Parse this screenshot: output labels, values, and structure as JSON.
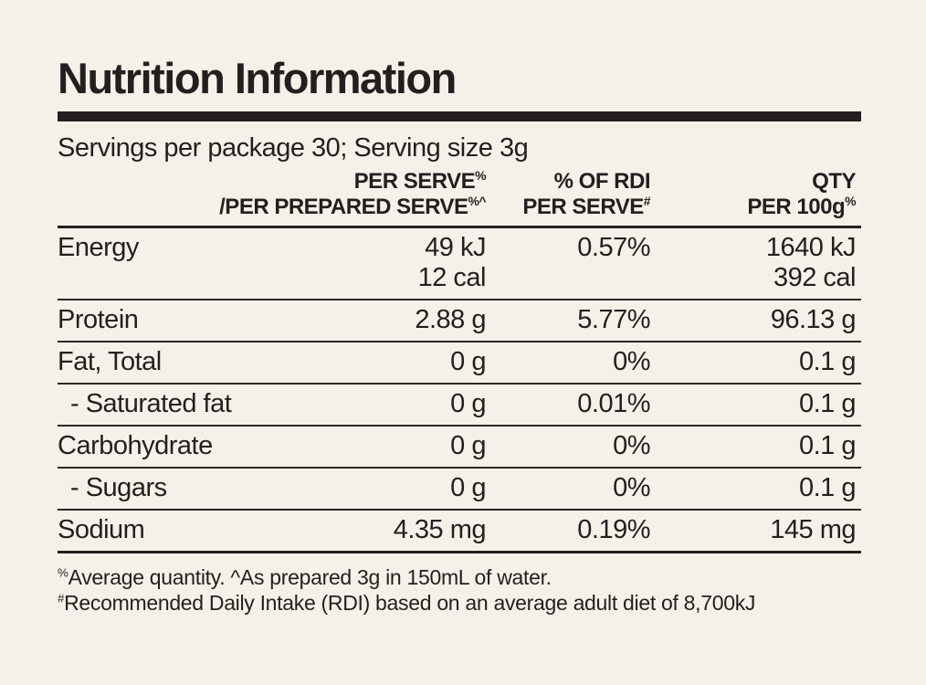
{
  "title": "Nutrition Information",
  "servings_line": "Servings per package 30; Serving size 3g",
  "table": {
    "headers": {
      "serve": {
        "line1": "PER SERVE",
        "line1_sup": "%",
        "line2": "/PER PREPARED SERVE",
        "line2_sup": "%^"
      },
      "rdi": {
        "line1": "% OF RDI",
        "line2": "PER SERVE",
        "line2_sup": "#"
      },
      "qty": {
        "line1": "QTY",
        "line2": "PER 100g",
        "line2_sup": "%"
      }
    },
    "rows": [
      {
        "name": "Energy",
        "serve": "49 kJ",
        "serve2": "12 cal",
        "rdi": "0.57%",
        "qty": "1640 kJ",
        "qty2": "392 cal"
      },
      {
        "name": "Protein",
        "serve": "2.88 g",
        "rdi": "5.77%",
        "qty": "96.13 g"
      },
      {
        "name": "Fat, Total",
        "serve": "0 g",
        "rdi": "0%",
        "qty": "0.1 g"
      },
      {
        "name": "- Saturated fat",
        "serve": "0 g",
        "rdi": "0.01%",
        "qty": "0.1 g"
      },
      {
        "name": "Carbohydrate",
        "serve": "0 g",
        "rdi": "0%",
        "qty": "0.1 g"
      },
      {
        "name": "- Sugars",
        "serve": "0 g",
        "rdi": "0%",
        "qty": "0.1 g"
      },
      {
        "name": "Sodium",
        "serve": "4.35 mg",
        "rdi": "0.19%",
        "qty": "145 mg"
      }
    ]
  },
  "footnotes": [
    {
      "sup": "%",
      "text": "Average quantity. ^As prepared 3g in 150mL of water."
    },
    {
      "sup": "#",
      "text": "Recommended Daily Intake (RDI) based on an average adult diet of 8,700kJ"
    }
  ],
  "colors": {
    "background": "#f5f1e8",
    "text": "#231f20"
  }
}
